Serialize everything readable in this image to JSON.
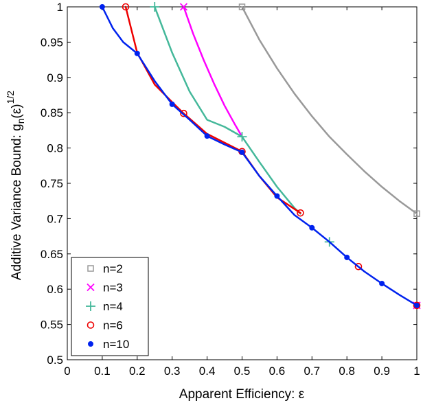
{
  "chart_data": {
    "type": "line",
    "xlabel": "Apparent Efficiency: ε",
    "ylabel_main": "Additive Variance Bound: g",
    "ylabel_sub": "n",
    "ylabel_paren": "(ε)",
    "ylabel_sup": "1/2",
    "xlim": [
      0,
      1
    ],
    "ylim": [
      0.5,
      1
    ],
    "x_ticks": [
      "0",
      "0.1",
      "0.2",
      "0.3",
      "0.4",
      "0.5",
      "0.6",
      "0.7",
      "0.8",
      "0.9",
      "1"
    ],
    "y_ticks": [
      "0.5",
      "0.55",
      "0.6",
      "0.65",
      "0.7",
      "0.75",
      "0.8",
      "0.85",
      "0.9",
      "0.95",
      "1"
    ],
    "grid": false,
    "legend_position": "bottom-left",
    "series": [
      {
        "name": "n=2",
        "color": "#999999",
        "marker": "square",
        "curve_x": [
          0.5,
          0.55,
          0.6,
          0.65,
          0.7,
          0.75,
          0.8,
          0.85,
          0.9,
          0.95,
          1.0
        ],
        "curve_y": [
          1.0,
          0.953,
          0.913,
          0.877,
          0.845,
          0.816,
          0.791,
          0.767,
          0.745,
          0.725,
          0.707
        ],
        "marker_x": [
          0.5,
          1.0
        ],
        "marker_y": [
          1.0,
          0.707
        ]
      },
      {
        "name": "n=3",
        "color": "#ff00ff",
        "marker": "x",
        "curve_x": [
          0.333,
          0.36,
          0.39,
          0.42,
          0.45,
          0.48,
          0.5
        ],
        "curve_y": [
          1.0,
          0.962,
          0.925,
          0.891,
          0.86,
          0.833,
          0.816
        ],
        "marker_x": [
          0.333,
          1.0
        ],
        "marker_y": [
          1.0,
          0.577
        ]
      },
      {
        "name": "n=4",
        "color": "#44b89a",
        "marker": "plus",
        "curve_x": [
          0.25,
          0.3,
          0.35,
          0.4,
          0.45,
          0.5,
          0.55,
          0.6,
          0.65,
          0.667
        ],
        "curve_y": [
          1.0,
          0.935,
          0.88,
          0.84,
          0.83,
          0.816,
          0.78,
          0.745,
          0.715,
          0.707
        ],
        "marker_x": [
          0.25,
          0.5,
          0.75
        ],
        "marker_y": [
          1.0,
          0.816,
          0.667
        ]
      },
      {
        "name": "n=6",
        "color": "#ee0000",
        "marker": "circle",
        "curve_x": [
          0.167,
          0.2,
          0.25,
          0.3,
          0.333,
          0.4,
          0.5,
          0.55,
          0.6,
          0.667
        ],
        "curve_y": [
          1.0,
          0.935,
          0.89,
          0.865,
          0.849,
          0.82,
          0.795,
          0.76,
          0.73,
          0.708
        ],
        "marker_x": [
          0.167,
          0.333,
          0.5,
          0.667,
          0.833,
          1.0
        ],
        "marker_y": [
          1.0,
          0.849,
          0.795,
          0.708,
          0.632,
          0.577
        ]
      },
      {
        "name": "n=10",
        "color": "#0022ee",
        "marker": "dot",
        "curve_x": [
          0.1,
          0.13,
          0.16,
          0.2,
          0.25,
          0.3,
          0.35,
          0.4,
          0.45,
          0.5,
          0.55,
          0.6,
          0.65,
          0.7,
          0.75,
          0.8,
          0.85,
          0.9,
          0.95,
          1.0
        ],
        "curve_y": [
          1.0,
          0.97,
          0.95,
          0.934,
          0.895,
          0.862,
          0.84,
          0.817,
          0.805,
          0.794,
          0.76,
          0.732,
          0.705,
          0.687,
          0.667,
          0.645,
          0.625,
          0.608,
          0.592,
          0.577
        ],
        "marker_x": [
          0.1,
          0.2,
          0.3,
          0.4,
          0.5,
          0.6,
          0.7,
          0.8,
          0.9,
          1.0
        ],
        "marker_y": [
          1.0,
          0.934,
          0.862,
          0.817,
          0.794,
          0.732,
          0.687,
          0.645,
          0.608,
          0.577
        ]
      }
    ]
  }
}
